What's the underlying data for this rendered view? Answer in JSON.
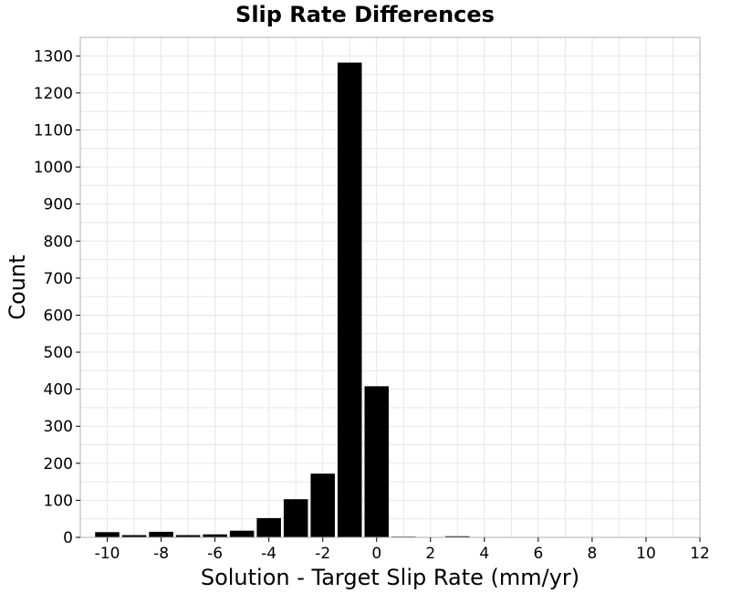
{
  "chart_data": {
    "type": "bar",
    "title": "Slip Rate Differences",
    "xlabel": "Solution - Target Slip Rate (mm/yr)",
    "ylabel": "Count",
    "xlim": [
      -11,
      12
    ],
    "ylim": [
      0,
      1350
    ],
    "bin_width": 1,
    "xticks": [
      -10,
      -8,
      -6,
      -4,
      -2,
      0,
      2,
      4,
      6,
      8,
      10,
      12
    ],
    "xtick_labels": [
      "-10",
      "-8",
      "-6",
      "-4",
      "-2",
      "0",
      "2",
      "4",
      "6",
      "8",
      "10",
      "12"
    ],
    "yticks": [
      0,
      100,
      200,
      300,
      400,
      500,
      600,
      700,
      800,
      900,
      1000,
      1100,
      1200,
      1300
    ],
    "ytick_labels": [
      "0",
      "100",
      "200",
      "300",
      "400",
      "500",
      "600",
      "700",
      "800",
      "900",
      "1000",
      "1100",
      "1200",
      "1300"
    ],
    "grid": true,
    "bar_color": "#000000",
    "bins": [
      {
        "x": -10,
        "value": 14
      },
      {
        "x": -9,
        "value": 6
      },
      {
        "x": -8,
        "value": 15
      },
      {
        "x": -7,
        "value": 6
      },
      {
        "x": -6,
        "value": 8
      },
      {
        "x": -5,
        "value": 18
      },
      {
        "x": -4,
        "value": 52
      },
      {
        "x": -3,
        "value": 103
      },
      {
        "x": -2,
        "value": 172
      },
      {
        "x": -1,
        "value": 1282
      },
      {
        "x": 0,
        "value": 408
      },
      {
        "x": 1,
        "value": 2
      },
      {
        "x": 2,
        "value": 0
      },
      {
        "x": 3,
        "value": 3
      },
      {
        "x": 4,
        "value": 1
      }
    ]
  }
}
